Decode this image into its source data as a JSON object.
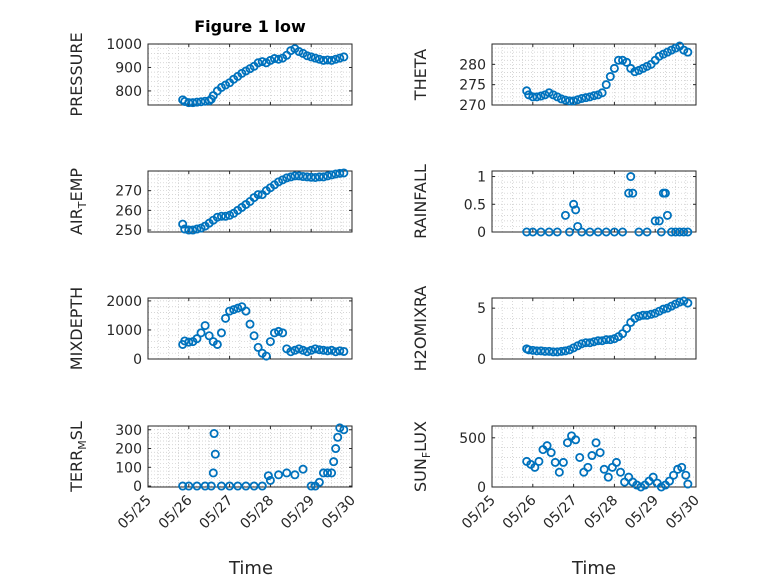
{
  "figure": {
    "title": "Figure 1 low",
    "xlabel": "Time",
    "marker_color": "#0072BD"
  },
  "chart_data": [
    {
      "type": "scatter",
      "ylabel": "PRESSURE",
      "title": "Figure 1 low",
      "ylim": [
        740,
        1000
      ],
      "yticks": [
        800,
        900,
        1000
      ],
      "xticks": [
        "05/25",
        "05/26",
        "05/27",
        "05/28",
        "05/29",
        "05/30"
      ],
      "xtick_labels_shown": false,
      "x": [
        25.85,
        25.9,
        26.0,
        26.1,
        26.2,
        26.3,
        26.4,
        26.5,
        26.55,
        26.6,
        26.7,
        26.8,
        26.9,
        27.0,
        27.1,
        27.2,
        27.3,
        27.4,
        27.5,
        27.6,
        27.7,
        27.8,
        27.9,
        28.0,
        28.1,
        28.2,
        28.3,
        28.4,
        28.5,
        28.6,
        28.7,
        28.8,
        28.9,
        29.0,
        29.1,
        29.2,
        29.3,
        29.4,
        29.5,
        29.6,
        29.7,
        29.8
      ],
      "y": [
        762,
        755,
        750,
        750,
        752,
        754,
        756,
        758,
        765,
        780,
        800,
        815,
        825,
        835,
        850,
        862,
        875,
        885,
        895,
        905,
        920,
        925,
        920,
        930,
        938,
        935,
        940,
        952,
        972,
        980,
        968,
        960,
        950,
        945,
        940,
        935,
        930,
        932,
        930,
        935,
        940,
        945
      ]
    },
    {
      "type": "scatter",
      "ylabel": "THETA",
      "ylim": [
        270,
        285
      ],
      "yticks": [
        270,
        275,
        280
      ],
      "xticks": [
        "05/25",
        "05/26",
        "05/27",
        "05/28",
        "05/29",
        "05/30"
      ],
      "xtick_labels_shown": false,
      "x": [
        25.85,
        25.9,
        26.0,
        26.1,
        26.2,
        26.3,
        26.4,
        26.5,
        26.6,
        26.7,
        26.8,
        26.9,
        27.0,
        27.1,
        27.2,
        27.3,
        27.4,
        27.5,
        27.6,
        27.7,
        27.8,
        27.9,
        28.0,
        28.1,
        28.2,
        28.3,
        28.4,
        28.5,
        28.6,
        28.7,
        28.8,
        28.9,
        29.0,
        29.1,
        29.2,
        29.3,
        29.4,
        29.5,
        29.6,
        29.7,
        29.8
      ],
      "y": [
        273.5,
        272.5,
        272,
        272,
        272.2,
        272.5,
        273,
        272.5,
        272,
        271.5,
        271.2,
        271,
        271,
        271.3,
        271.6,
        271.8,
        272,
        272.3,
        272.5,
        273,
        275,
        277,
        279,
        281,
        281,
        280.5,
        279,
        278.2,
        278.5,
        279,
        279.5,
        280,
        281,
        282,
        282.5,
        283,
        283.5,
        284,
        284.5,
        283.5,
        283
      ]
    },
    {
      "type": "scatter",
      "ylabel": "AIR_TEMP",
      "ylim": [
        249,
        280
      ],
      "yticks": [
        250,
        260,
        270
      ],
      "xticks": [
        "05/25",
        "05/26",
        "05/27",
        "05/28",
        "05/29",
        "05/30"
      ],
      "xtick_labels_shown": false,
      "x": [
        25.85,
        25.9,
        26.0,
        26.1,
        26.2,
        26.3,
        26.4,
        26.5,
        26.6,
        26.7,
        26.8,
        26.9,
        27.0,
        27.1,
        27.2,
        27.3,
        27.4,
        27.5,
        27.6,
        27.7,
        27.8,
        27.9,
        28.0,
        28.1,
        28.2,
        28.3,
        28.4,
        28.5,
        28.6,
        28.7,
        28.8,
        28.9,
        29.0,
        29.1,
        29.2,
        29.3,
        29.4,
        29.5,
        29.6,
        29.7,
        29.8
      ],
      "y": [
        253,
        250.5,
        250,
        250,
        250.5,
        251,
        252,
        253.5,
        255,
        256.5,
        257,
        257,
        257.5,
        258.5,
        260,
        261.5,
        263,
        264.5,
        266.5,
        268,
        268,
        270,
        271.5,
        273,
        274.5,
        275.5,
        276.5,
        277,
        277.5,
        277.5,
        277.2,
        277,
        276.8,
        276.7,
        277,
        277,
        277.5,
        278,
        278.5,
        278.8,
        279
      ]
    },
    {
      "type": "scatter",
      "ylabel": "RAINFALL",
      "ylim": [
        0,
        1.1
      ],
      "yticks": [
        0,
        0.5,
        1
      ],
      "xticks": [
        "05/25",
        "05/26",
        "05/27",
        "05/28",
        "05/29",
        "05/30"
      ],
      "xtick_labels_shown": false,
      "x": [
        25.85,
        26.0,
        26.2,
        26.4,
        26.6,
        26.8,
        26.9,
        27.0,
        27.05,
        27.1,
        27.2,
        27.4,
        27.6,
        27.8,
        28.0,
        28.2,
        28.35,
        28.4,
        28.45,
        28.6,
        28.8,
        29.0,
        29.1,
        29.15,
        29.2,
        29.25,
        29.3,
        29.4,
        29.5,
        29.6,
        29.7,
        29.8
      ],
      "y": [
        0,
        0,
        0,
        0,
        0,
        0.3,
        0,
        0.5,
        0.4,
        0.1,
        0,
        0,
        0,
        0,
        0,
        0,
        0.7,
        1.0,
        0.7,
        0,
        0,
        0.2,
        0.2,
        0,
        0.7,
        0.7,
        0.3,
        0,
        0,
        0,
        0,
        0
      ]
    },
    {
      "type": "scatter",
      "ylabel": "MIXDEPTH",
      "ylim": [
        0,
        2100
      ],
      "yticks": [
        0,
        1000,
        2000
      ],
      "xticks": [
        "05/25",
        "05/26",
        "05/27",
        "05/28",
        "05/29",
        "05/30"
      ],
      "xtick_labels_shown": false,
      "x": [
        25.85,
        25.9,
        26.0,
        26.1,
        26.2,
        26.3,
        26.4,
        26.5,
        26.6,
        26.7,
        26.8,
        26.9,
        27.0,
        27.1,
        27.2,
        27.3,
        27.4,
        27.5,
        27.6,
        27.7,
        27.8,
        27.9,
        28.0,
        28.1,
        28.2,
        28.3,
        28.4,
        28.5,
        28.6,
        28.7,
        28.8,
        28.9,
        29.0,
        29.1,
        29.2,
        29.3,
        29.4,
        29.5,
        29.6,
        29.7,
        29.8
      ],
      "y": [
        500,
        620,
        580,
        600,
        700,
        900,
        1150,
        800,
        600,
        500,
        900,
        1400,
        1650,
        1700,
        1750,
        1800,
        1650,
        1200,
        800,
        400,
        200,
        100,
        600,
        900,
        950,
        900,
        350,
        250,
        300,
        350,
        300,
        250,
        300,
        350,
        320,
        300,
        280,
        300,
        250,
        280,
        260
      ]
    },
    {
      "type": "scatter",
      "ylabel": "H2OMIXRA",
      "ylim": [
        0,
        6
      ],
      "yticks": [
        0,
        5
      ],
      "xticks": [
        "05/25",
        "05/26",
        "05/27",
        "05/28",
        "05/29",
        "05/30"
      ],
      "xtick_labels_shown": false,
      "x": [
        25.85,
        25.9,
        26.0,
        26.1,
        26.2,
        26.3,
        26.4,
        26.5,
        26.6,
        26.7,
        26.8,
        26.9,
        27.0,
        27.1,
        27.2,
        27.3,
        27.4,
        27.5,
        27.6,
        27.7,
        27.8,
        27.9,
        28.0,
        28.1,
        28.2,
        28.3,
        28.4,
        28.5,
        28.6,
        28.7,
        28.8,
        28.9,
        29.0,
        29.1,
        29.2,
        29.3,
        29.4,
        29.5,
        29.6,
        29.7,
        29.8
      ],
      "y": [
        1.0,
        0.9,
        0.85,
        0.8,
        0.8,
        0.75,
        0.75,
        0.7,
        0.7,
        0.75,
        0.8,
        0.9,
        1.1,
        1.3,
        1.5,
        1.6,
        1.6,
        1.7,
        1.8,
        1.8,
        1.9,
        1.9,
        2.0,
        2.2,
        2.5,
        3.0,
        3.6,
        4.0,
        4.2,
        4.3,
        4.3,
        4.4,
        4.5,
        4.7,
        4.9,
        5.0,
        5.2,
        5.4,
        5.6,
        5.7,
        5.5
      ]
    },
    {
      "type": "scatter",
      "ylabel": "TERR_MSL",
      "ylim": [
        -5,
        320
      ],
      "yticks": [
        0,
        100,
        200,
        300
      ],
      "xticks": [
        "05/25",
        "05/26",
        "05/27",
        "05/28",
        "05/29",
        "05/30"
      ],
      "xtick_labels_shown": true,
      "x": [
        25.85,
        26.0,
        26.2,
        26.4,
        26.55,
        26.6,
        26.62,
        26.65,
        26.8,
        27.0,
        27.2,
        27.4,
        27.6,
        27.8,
        27.95,
        28.0,
        28.2,
        28.4,
        28.6,
        28.8,
        29.0,
        29.1,
        29.2,
        29.3,
        29.4,
        29.5,
        29.55,
        29.6,
        29.65,
        29.7,
        29.8
      ],
      "y": [
        0,
        0,
        0,
        0,
        0,
        70,
        280,
        170,
        0,
        0,
        0,
        0,
        0,
        0,
        55,
        30,
        60,
        70,
        60,
        90,
        0,
        0,
        20,
        70,
        70,
        70,
        130,
        200,
        260,
        310,
        300
      ]
    },
    {
      "type": "scatter",
      "ylabel": "SUN_FLUX",
      "ylim": [
        0,
        620
      ],
      "yticks": [
        0,
        500
      ],
      "xticks": [
        "05/25",
        "05/26",
        "05/27",
        "05/28",
        "05/29",
        "05/30"
      ],
      "xtick_labels_shown": true,
      "x": [
        25.85,
        25.95,
        26.05,
        26.15,
        26.25,
        26.35,
        26.45,
        26.55,
        26.65,
        26.75,
        26.85,
        26.95,
        27.05,
        27.15,
        27.25,
        27.35,
        27.45,
        27.55,
        27.65,
        27.75,
        27.85,
        27.95,
        28.05,
        28.15,
        28.25,
        28.35,
        28.45,
        28.55,
        28.65,
        28.75,
        28.85,
        28.95,
        29.05,
        29.15,
        29.25,
        29.35,
        29.45,
        29.55,
        29.65,
        29.75,
        29.8
      ],
      "y": [
        260,
        230,
        200,
        260,
        380,
        420,
        350,
        250,
        150,
        250,
        450,
        520,
        480,
        300,
        150,
        200,
        320,
        450,
        350,
        180,
        100,
        200,
        250,
        150,
        50,
        100,
        50,
        20,
        0,
        20,
        60,
        100,
        40,
        0,
        20,
        60,
        120,
        180,
        200,
        120,
        30
      ]
    }
  ]
}
